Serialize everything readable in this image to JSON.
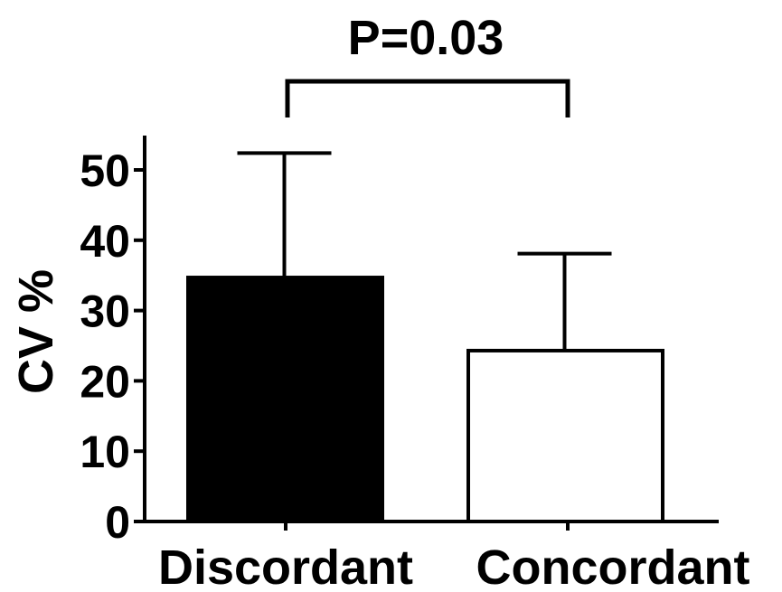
{
  "chart_data": {
    "type": "bar",
    "title": "",
    "xlabel": "",
    "ylabel": "CV %",
    "ylim": [
      0,
      55
    ],
    "yticks": [
      0,
      10,
      20,
      30,
      40,
      50
    ],
    "yticks_labels": [
      "0",
      "10",
      "20",
      "30",
      "40",
      "50"
    ],
    "grid": false,
    "legend": "none",
    "categories": [
      "Discordant",
      "Concordant"
    ],
    "values": [
      34.7,
      24.3
    ],
    "error_upper": [
      52.4,
      38.1
    ],
    "bar_colors": [
      "#000000",
      "#ffffff"
    ],
    "annotation": {
      "text": "P=0.03",
      "between": [
        "Discordant",
        "Concordant"
      ],
      "bracket_value": 62.5
    }
  }
}
